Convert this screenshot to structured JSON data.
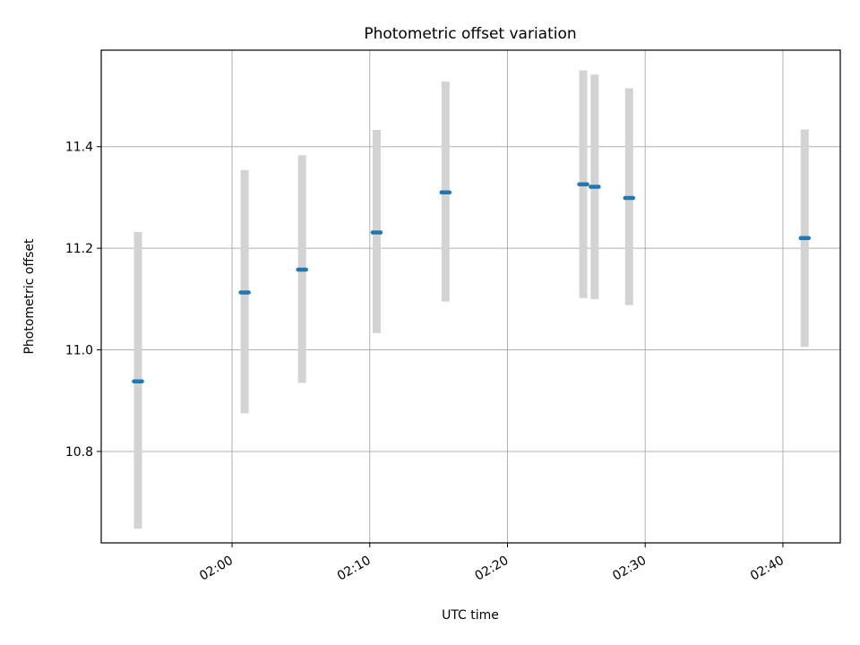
{
  "chart_data": {
    "type": "scatter",
    "title": "Photometric offset variation",
    "xlabel": "UTC time",
    "ylabel": "Photometric offset",
    "x_ticks": [
      "02:00",
      "02:10",
      "02:20",
      "02:30",
      "02:40"
    ],
    "y_ticks": [
      "10.8",
      "11.0",
      "11.2",
      "11.4"
    ],
    "xlim": [
      "01:50:30",
      "02:44:10"
    ],
    "ylim": [
      10.62,
      11.59
    ],
    "grid": true,
    "point_color": "#1f77b4",
    "errorbar_color": "#d3d3d3",
    "points": [
      {
        "x": "01:53:10",
        "y": 10.938,
        "ylow": 10.648,
        "yhigh": 11.232
      },
      {
        "x": "02:00:55",
        "y": 11.113,
        "ylow": 10.875,
        "yhigh": 11.354
      },
      {
        "x": "02:05:05",
        "y": 11.158,
        "ylow": 10.935,
        "yhigh": 11.383
      },
      {
        "x": "02:10:30",
        "y": 11.231,
        "ylow": 11.033,
        "yhigh": 11.433
      },
      {
        "x": "02:15:30",
        "y": 11.31,
        "ylow": 11.095,
        "yhigh": 11.528
      },
      {
        "x": "02:25:30",
        "y": 11.326,
        "ylow": 11.102,
        "yhigh": 11.55
      },
      {
        "x": "02:26:20",
        "y": 11.321,
        "ylow": 11.1,
        "yhigh": 11.542
      },
      {
        "x": "02:28:50",
        "y": 11.299,
        "ylow": 11.088,
        "yhigh": 11.515
      },
      {
        "x": "02:41:35",
        "y": 11.22,
        "ylow": 11.006,
        "yhigh": 11.434
      }
    ]
  }
}
